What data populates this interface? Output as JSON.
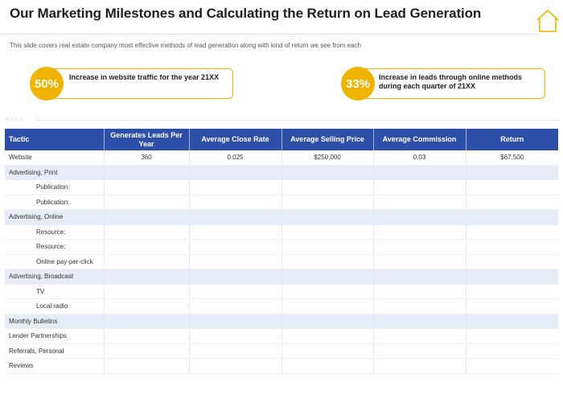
{
  "title": "Our Marketing Milestones and Calculating the Return on Lead Generation",
  "subtitle": "This slide covers real estate company most effective methods of lead generation along with kind of return we see from each",
  "stats": [
    {
      "percent": "50%",
      "text": "Increase in website traffic for the year 21XX"
    },
    {
      "percent": "33%",
      "text": "Increase in leads through online methods during each quarter of 21XX"
    }
  ],
  "colors": {
    "accent": "#f0b400",
    "header_bg": "#2e4fa8",
    "row_shade": "#e6ecf8"
  },
  "table": {
    "headers": [
      "Tactic",
      "Generates Leads Per Year",
      "Average Close Rate",
      "Average Selling Price",
      "Average Commission",
      "Return"
    ],
    "rows": [
      {
        "cells": [
          "Website",
          "360",
          "0.025",
          "$250,000",
          "0.03",
          "$67,500"
        ],
        "indent": false,
        "shade": false
      },
      {
        "cells": [
          "Advertising, Print",
          "",
          "",
          "",
          "",
          ""
        ],
        "indent": false,
        "shade": true
      },
      {
        "cells": [
          "Publication:",
          "",
          "",
          "",
          "",
          ""
        ],
        "indent": true,
        "shade": false
      },
      {
        "cells": [
          "Publication:",
          "",
          "",
          "",
          "",
          ""
        ],
        "indent": true,
        "shade": false
      },
      {
        "cells": [
          "Advertising, Online",
          "",
          "",
          "",
          "",
          ""
        ],
        "indent": false,
        "shade": true
      },
      {
        "cells": [
          "Resource:",
          "",
          "",
          "",
          "",
          ""
        ],
        "indent": true,
        "shade": false
      },
      {
        "cells": [
          "Resource:",
          "",
          "",
          "",
          "",
          ""
        ],
        "indent": true,
        "shade": false
      },
      {
        "cells": [
          "Online pay-per-click",
          "",
          "",
          "",
          "",
          ""
        ],
        "indent": true,
        "shade": false
      },
      {
        "cells": [
          "Advertising, Broadcast",
          "",
          "",
          "",
          "",
          ""
        ],
        "indent": false,
        "shade": true
      },
      {
        "cells": [
          "TV",
          "",
          "",
          "",
          "",
          ""
        ],
        "indent": true,
        "shade": false
      },
      {
        "cells": [
          "Local radio",
          "",
          "",
          "",
          "",
          ""
        ],
        "indent": true,
        "shade": false
      },
      {
        "cells": [
          "Monthly Bulletins",
          "",
          "",
          "",
          "",
          ""
        ],
        "indent": false,
        "shade": true
      },
      {
        "cells": [
          "Lender Partnerships",
          "",
          "",
          "",
          "",
          ""
        ],
        "indent": false,
        "shade": false
      },
      {
        "cells": [
          "Referrals, Personal",
          "",
          "",
          "",
          "",
          ""
        ],
        "indent": false,
        "shade": false
      },
      {
        "cells": [
          "Reviews",
          "",
          "",
          "",
          "",
          ""
        ],
        "indent": false,
        "shade": false
      }
    ]
  }
}
